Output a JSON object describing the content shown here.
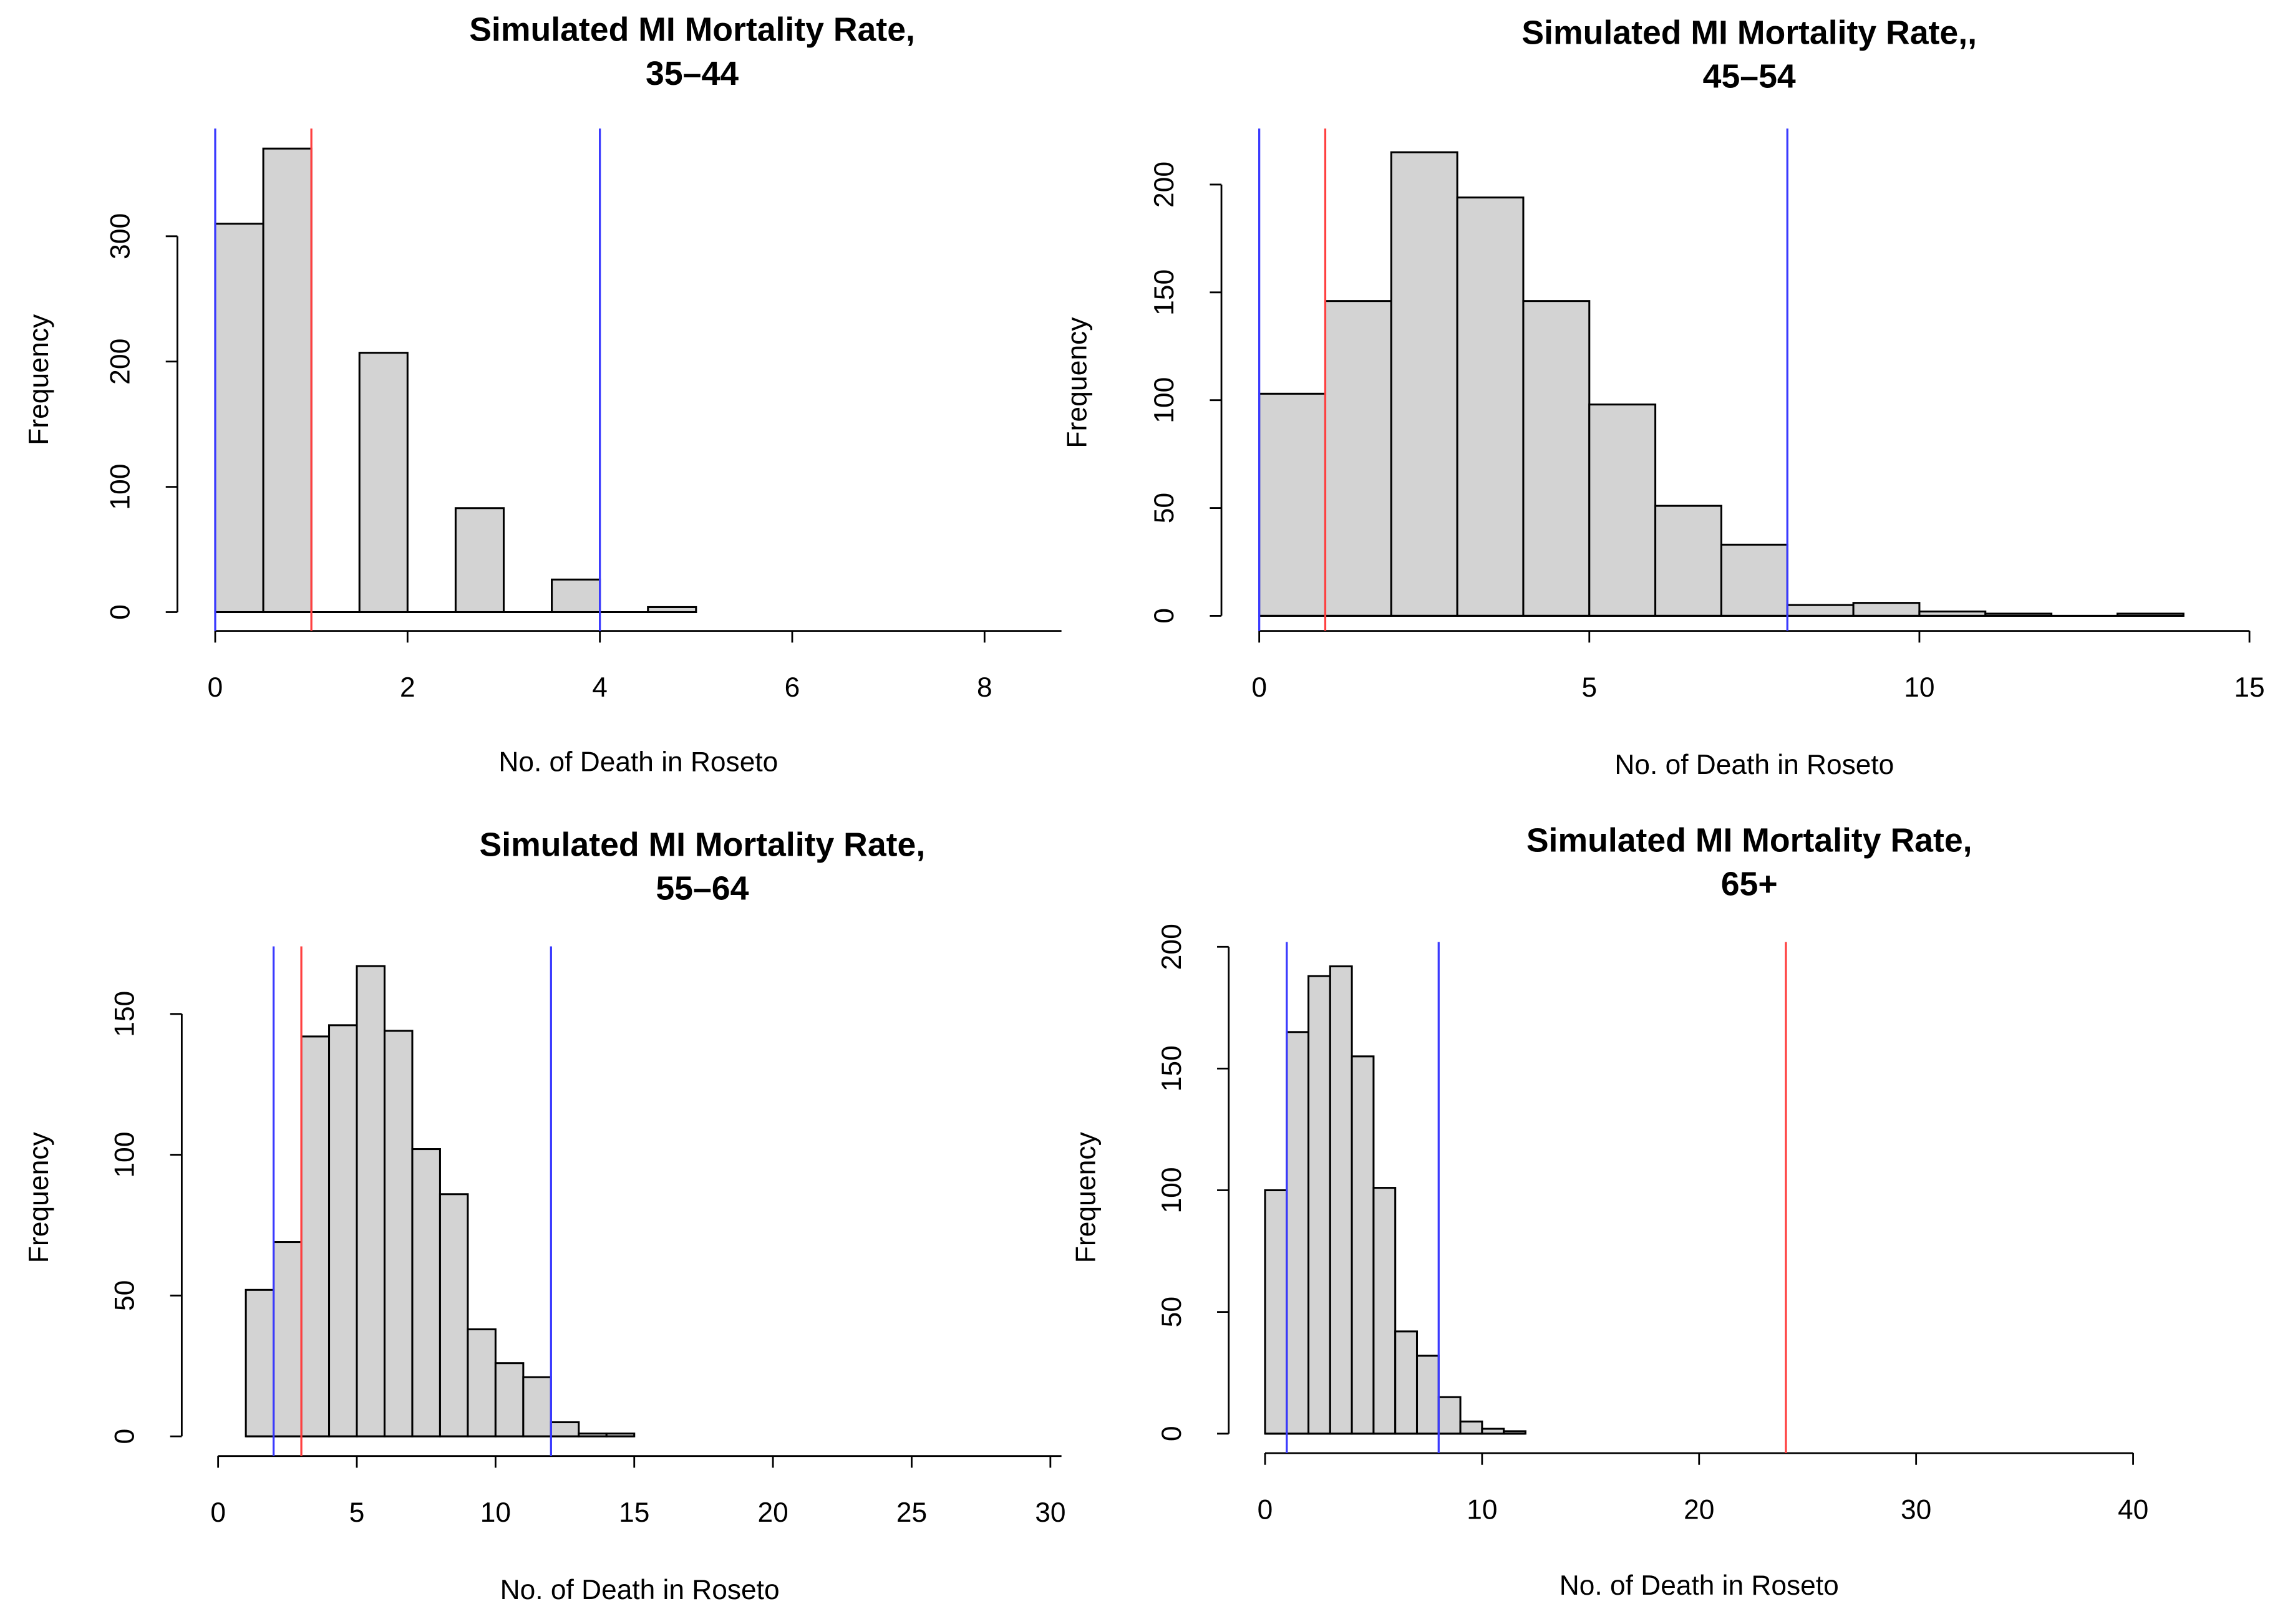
{
  "chart_data": [
    {
      "type": "histogram",
      "title": [
        "Simulated MI Mortality Rate,",
        "35–44"
      ],
      "xlabel": "No. of Death in Roseto",
      "ylabel": "Frequency",
      "bins": [
        0,
        0.5,
        1,
        1.5,
        2,
        2.5,
        3,
        3.5,
        4,
        4.5,
        5
      ],
      "values": [
        310,
        370,
        0,
        207,
        0,
        83,
        0,
        26,
        0,
        4
      ],
      "color": "#d3d3d3",
      "xlim": [
        0,
        8.8
      ],
      "xticks": [
        0,
        2,
        4,
        6,
        8
      ],
      "ylim": [
        -15,
        386
      ],
      "yticks": [
        0,
        100,
        200,
        300
      ],
      "vlines": [
        {
          "value": 0,
          "color": "#3a3aff"
        },
        {
          "value": 4,
          "color": "#3a3aff"
        },
        {
          "value": 1,
          "color": "#ff4040"
        }
      ]
    },
    {
      "type": "histogram",
      "title": [
        "Simulated MI Mortality Rate,,",
        "45–54"
      ],
      "xlabel": "No. of Death in Roseto",
      "ylabel": "Frequency",
      "bins": [
        0,
        1,
        2,
        3,
        4,
        5,
        6,
        7,
        8,
        9,
        10,
        11,
        12,
        13,
        14
      ],
      "values": [
        103,
        146,
        215,
        194,
        146,
        98,
        51,
        33,
        5,
        6,
        2,
        1,
        0,
        1
      ],
      "color": "#d3d3d3",
      "xlim": [
        0,
        15
      ],
      "xticks": [
        0,
        5,
        10,
        15
      ],
      "ylim": [
        -7,
        226
      ],
      "yticks": [
        0,
        50,
        100,
        150,
        200
      ],
      "vlines": [
        {
          "value": 0,
          "color": "#3a3aff"
        },
        {
          "value": 8,
          "color": "#3a3aff"
        },
        {
          "value": 1,
          "color": "#ff4040"
        }
      ]
    },
    {
      "type": "histogram",
      "title": [
        "Simulated MI Mortality Rate,",
        "55–64"
      ],
      "xlabel": "No. of Death in Roseto",
      "ylabel": "Frequency",
      "bins": [
        1,
        2,
        3,
        4,
        5,
        6,
        7,
        8,
        9,
        10,
        11,
        12,
        13,
        14,
        15
      ],
      "values": [
        52,
        69,
        142,
        146,
        167,
        144,
        102,
        86,
        38,
        26,
        21,
        5,
        1,
        1
      ],
      "color": "#d3d3d3",
      "xlim": [
        0,
        30.4
      ],
      "xticks": [
        0,
        5,
        10,
        15,
        20,
        25,
        30
      ],
      "ylim": [
        -7,
        174
      ],
      "yticks": [
        0,
        50,
        100,
        150
      ],
      "vlines": [
        {
          "value": 2,
          "color": "#3a3aff"
        },
        {
          "value": 12,
          "color": "#3a3aff"
        },
        {
          "value": 3,
          "color": "#ff4040"
        }
      ]
    },
    {
      "type": "histogram",
      "title": [
        "Simulated MI Mortality Rate,",
        "65+"
      ],
      "xlabel": "No. of Death in Roseto",
      "ylabel": "Frequency",
      "bins": [
        0,
        1,
        2,
        3,
        4,
        5,
        6,
        7,
        8,
        9,
        10,
        11,
        12
      ],
      "values": [
        100,
        165,
        188,
        192,
        155,
        101,
        42,
        32,
        15,
        5,
        2,
        1
      ],
      "color": "#d3d3d3",
      "xlim": [
        0,
        40
      ],
      "xticks": [
        0,
        10,
        20,
        30,
        40
      ],
      "ylim": [
        -8,
        202
      ],
      "yticks": [
        0,
        50,
        100,
        150,
        200
      ],
      "vlines": [
        {
          "value": 1,
          "color": "#3a3aff"
        },
        {
          "value": 8,
          "color": "#3a3aff"
        },
        {
          "value": 24,
          "color": "#ff4040"
        }
      ]
    }
  ]
}
